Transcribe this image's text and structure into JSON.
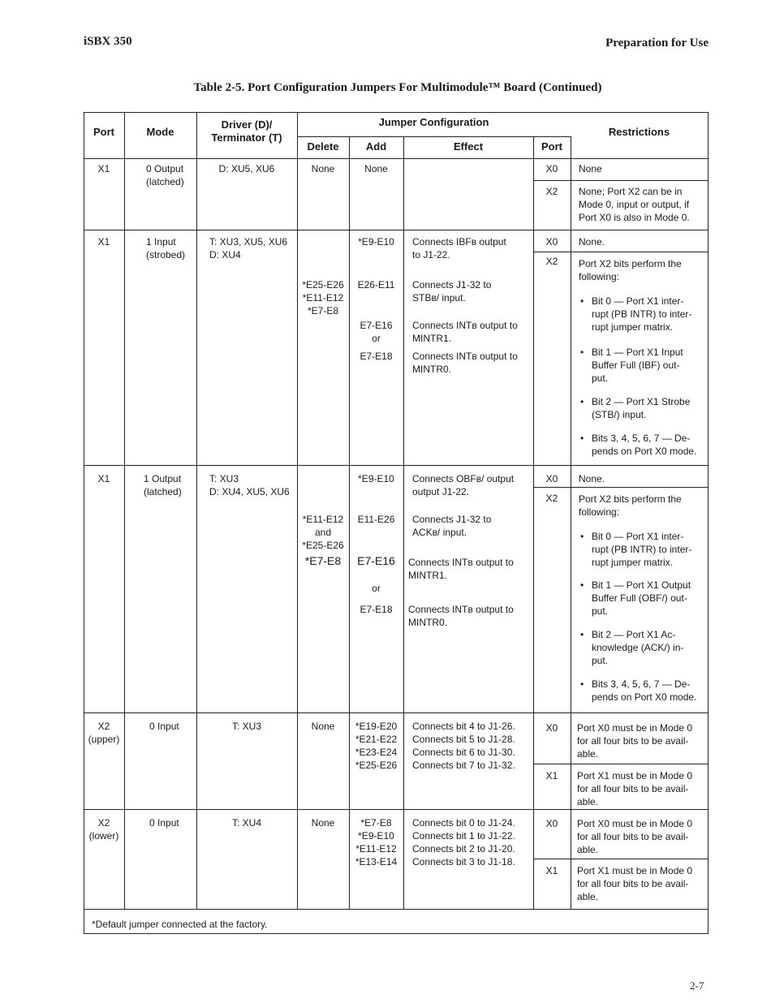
{
  "header": {
    "left": "iSBX 350",
    "right": "Preparation for Use"
  },
  "title": "Table 2-5. Port Configuration Jumpers For Multimodule™ Board (Continued)",
  "columns": {
    "port": "Port",
    "mode": "Mode",
    "driver": "Driver (D)/\nTerminator (T)",
    "jumper": "Jumper Configuration",
    "delete": "Delete",
    "add": "Add",
    "effect": "Effect",
    "jport": "Port",
    "restrictions": "Restrictions"
  },
  "rows": [
    {
      "port": "X1",
      "mode": "0 Output\n(latched)",
      "driver": "D: XU5, XU6",
      "delete": "None",
      "add": "None",
      "ports": [
        "X0",
        "X2"
      ],
      "restrictions": [
        "None",
        "None; Port X2 can be in\nMode 0, input or output, if\nPort X0 is also in Mode 0."
      ]
    },
    {
      "port": "X1",
      "mode": "1 Input\n(strobed)",
      "driver": "T: XU3, XU5, XU6\nD: XU4",
      "delete": "*E25-E26\n*E11-E12\n*E7-E8",
      "add": [
        "*E9-E10",
        "E26-E11",
        "E7-E16\nor",
        "E7-E18"
      ],
      "effect": [
        "Connects IBFʙ output\nto J1-22.",
        "Connects J1-32 to\nSTBʙ/ input.",
        "Connects INTʙ output to\nMINTR1.",
        "Connects INTʙ output to\nMINTR0."
      ],
      "ports": [
        "X0",
        "X2"
      ],
      "restrictions": [
        "None.",
        "Port X2 bits perform the\nfollowing:"
      ],
      "bullets": [
        "Bit 0 — Port X1 inter-\nrupt (PB INTR) to inter-\nrupt jumper matrix.",
        "Bit 1 — Port X1 Input\nBuffer Full (IBF) out-\nput.",
        "Bit 2 — Port X1 Strobe\n(STB/) input.",
        "Bits 3, 4, 5, 6, 7 — De-\npends on Port X0 mode."
      ]
    },
    {
      "port": "X1",
      "mode": "1 Output\n(latched)",
      "driver": "T: XU3\nD: XU4, XU5, XU6",
      "delete": [
        "*E11-E12\nand\n*E25-E26",
        "*E7-E8"
      ],
      "add": [
        "*E9-E10",
        "E11-E26",
        "E7-E16",
        "or",
        "E7-E18"
      ],
      "effect": [
        "Connects OBFʙ/ output\noutput J1-22.",
        "Connects J1-32 to\nACKʙ/ input.",
        "Connects INTʙ output to\nMINTR1.",
        "Connects INTʙ output to\nMINTR0."
      ],
      "ports": [
        "X0",
        "X2"
      ],
      "restrictions": [
        "None.",
        "Port X2 bits perform the\nfollowing:"
      ],
      "bullets": [
        "Bit 0 — Port X1 inter-\nrupt (PB INTR) to inter-\nrupt jumper matrix.",
        "Bit 1 — Port X1 Output\nBuffer Full (OBF/) out-\nput.",
        "Bit 2 — Port X1 Ac-\nknowledge (ACK/) in-\nput.",
        "Bits 3, 4, 5, 6, 7 — De-\npends on Port X0 mode."
      ]
    },
    {
      "port": "X2\n(upper)",
      "mode": "0 Input",
      "driver": "T: XU3",
      "delete": "None",
      "add": "*E19-E20\n*E21-E22\n*E23-E24\n*E25-E26",
      "effect": "Connects bit 4 to J1-26.\nConnects bit 5 to J1-28.\nConnects bit 6 to J1-30.\nConnects bit 7 to J1-32.",
      "ports": [
        "X0",
        "X1"
      ],
      "restrictions": [
        "Port X0 must be in Mode 0\nfor all four bits to be avail-\nable.",
        "Port X1 must be in Mode 0\nfor all four bits to be avail-\nable."
      ]
    },
    {
      "port": "X2\n(lower)",
      "mode": "0 Input",
      "driver": "T: XU4",
      "delete": "None",
      "add": "*E7-E8\n*E9-E10\n*E11-E12\n*E13-E14",
      "effect": "Connects bit 0 to J1-24.\nConnects bit 1 to J1-22.\nConnects bit 2 to J1-20.\nConnects bit 3 to J1-18.",
      "ports": [
        "X0",
        "X1"
      ],
      "restrictions": [
        "Port X0 must be in Mode 0\nfor all four bits to be avail-\nable.",
        "Port X1 must be in Mode 0\nfor all four bits to be avail-\nable."
      ]
    }
  ],
  "footnote": "*Default jumper connected at the factory.",
  "page_number": "2-7"
}
